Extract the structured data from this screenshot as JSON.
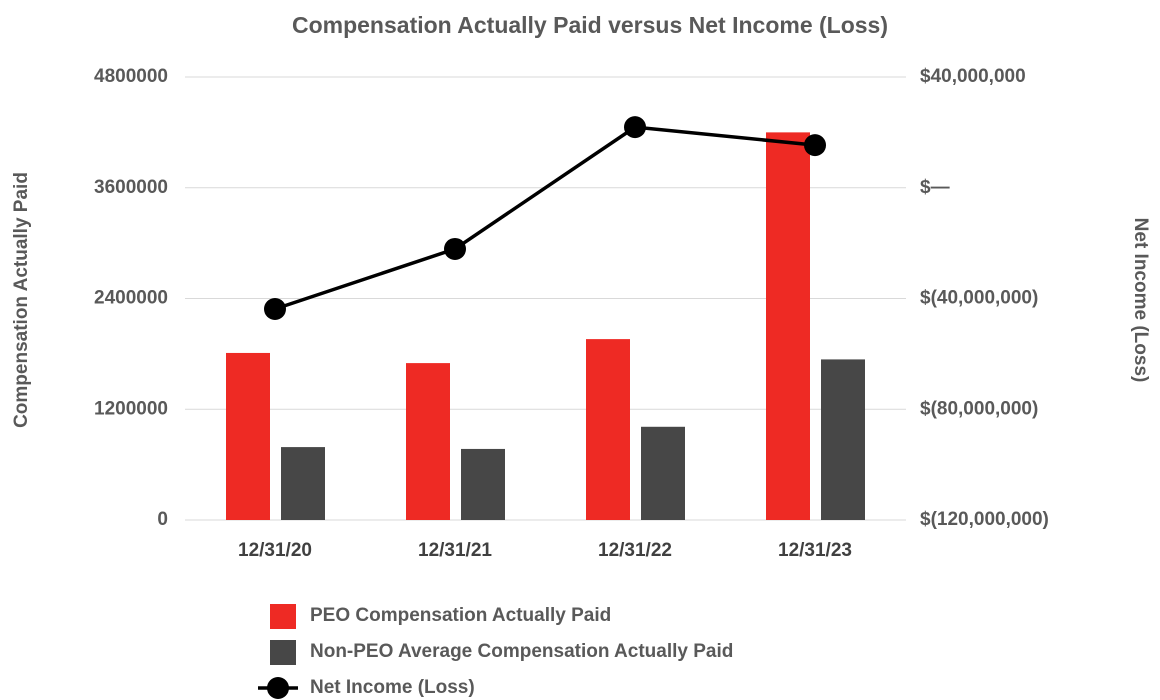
{
  "chart_data": {
    "type": "bar+line",
    "title": "Compensation Actually Paid versus Net Income (Loss)",
    "ylabel": "Compensation Actually Paid",
    "y2label": "Net Income (Loss)",
    "categories": [
      "12/31/20",
      "12/31/21",
      "12/31/22",
      "12/31/23"
    ],
    "series": [
      {
        "name": "PEO Compensation Actually Paid",
        "type": "bar",
        "color": "#ee2a24",
        "values": [
          1810000,
          1700000,
          1960000,
          4200000
        ]
      },
      {
        "name": "Non-PEO Average Compensation Actually Paid",
        "type": "bar",
        "color": "#474747",
        "values": [
          790000,
          770000,
          1010000,
          1740000
        ]
      },
      {
        "name": "Net Income (Loss)",
        "type": "line",
        "axis": "y2",
        "color": "#000000",
        "values": [
          -43800000,
          -22100000,
          21900000,
          15400000
        ]
      }
    ],
    "ylim": [
      0,
      4800000
    ],
    "yticks": [
      0,
      1200000,
      2400000,
      3600000,
      4800000
    ],
    "y2lim": [
      -120000000,
      40000000
    ],
    "y2ticks": [
      {
        "value": -120000000,
        "label": "$(120,000,000)"
      },
      {
        "value": -80000000,
        "label": "$(80,000,000)"
      },
      {
        "value": -40000000,
        "label": "$(40,000,000)"
      },
      {
        "value": 0,
        "label": "$—"
      },
      {
        "value": 40000000,
        "label": "$40,000,000"
      }
    ],
    "grid": true
  }
}
